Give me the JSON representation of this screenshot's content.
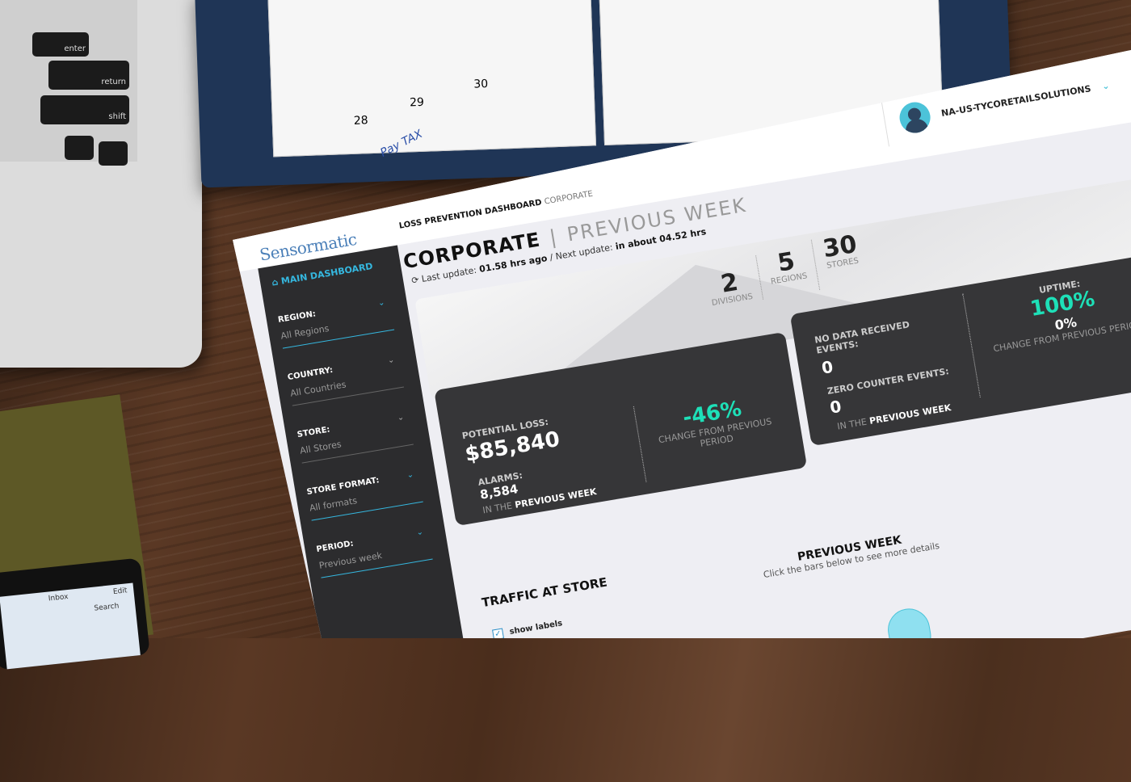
{
  "background": {
    "laptop_keys": [
      "enter",
      "return",
      "shift"
    ],
    "notebook_text": [
      "28",
      "29",
      "30",
      "Pay TAX"
    ],
    "phone": {
      "inbox": "Inbox",
      "edit": "Edit",
      "search": "Search"
    }
  },
  "app": {
    "logo": "Sensormatic",
    "breadcrumb": {
      "main": "LOSS PREVENTION DASHBOARD",
      "current": "CORPORATE"
    },
    "user": {
      "name": "NA-US-TYCORETAILSOLUTIONS",
      "chevron": "⌄"
    }
  },
  "header": {
    "title": "CORPORATE",
    "separator": "|",
    "period": "PREVIOUS WEEK",
    "refresh_icon": "⟳",
    "last_update_label": "Last update:",
    "last_update": "01.58 hrs ago",
    "next_update_label": "/ Next update:",
    "next_update": "in about 04.52 hrs"
  },
  "stats": [
    {
      "value": "2",
      "label": "DIVISIONS"
    },
    {
      "value": "5",
      "label": "REGIONS"
    },
    {
      "value": "30",
      "label": "STORES"
    }
  ],
  "sidebar": {
    "main": "MAIN DASHBOARD",
    "home_icon": "⌂",
    "filters": [
      {
        "label": "REGION:",
        "value": "All Regions",
        "active": true
      },
      {
        "label": "COUNTRY:",
        "value": "All Countries",
        "active": false
      },
      {
        "label": "STORE:",
        "value": "All Stores",
        "active": false
      },
      {
        "label": "STORE FORMAT:",
        "value": "All formats",
        "active": true
      },
      {
        "label": "PERIOD:",
        "value": "Previous week",
        "active": true
      }
    ]
  },
  "loss_card": {
    "label": "POTENTIAL LOSS:",
    "value": "$85,840",
    "alarms_label": "ALARMS:",
    "alarms": "8,584",
    "period_prefix": "IN THE",
    "period": "PREVIOUS WEEK",
    "change": "-46%",
    "change_label": "CHANGE FROM PREVIOUS PERIOD"
  },
  "events_card": {
    "nodata_label": "NO DATA RECEIVED EVENTS:",
    "nodata": "0",
    "zero_label": "ZERO COUNTER EVENTS:",
    "zero": "0",
    "period_prefix": "IN THE",
    "period": "PREVIOUS WEEK",
    "uptime_label": "UPTIME:",
    "uptime": "100%",
    "change": "0%",
    "change_label": "CHANGE FROM PREVIOUS PERIOD"
  },
  "traffic": {
    "title": "TRAFFIC AT STORE",
    "period": "PREVIOUS WEEK",
    "hint": "Click the bars below to see more details",
    "show_labels": "show labels",
    "checked": true
  },
  "colors": {
    "accent": "#35b8e0",
    "positive": "#1ee0b8",
    "card": "#363638",
    "sidebar": "#2c2c2e"
  }
}
